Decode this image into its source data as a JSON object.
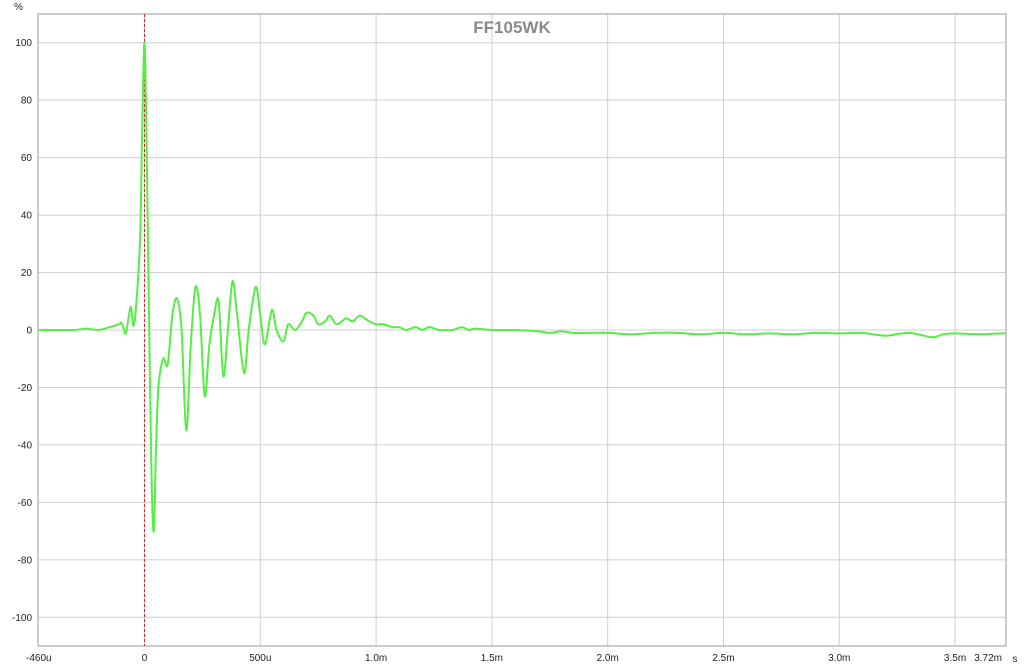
{
  "chart_data": {
    "type": "line",
    "title": "FF105WK",
    "y_unit": "%",
    "x_unit": "s",
    "xlim": [
      -0.00046,
      0.00372
    ],
    "ylim": [
      -110,
      110
    ],
    "grid": true,
    "x_ticks": [
      {
        "value": -0.00046,
        "label": "-460u"
      },
      {
        "value": 0,
        "label": "0"
      },
      {
        "value": 0.0005,
        "label": "500u"
      },
      {
        "value": 0.001,
        "label": "1.0m"
      },
      {
        "value": 0.0015,
        "label": "1.5m"
      },
      {
        "value": 0.002,
        "label": "2.0m"
      },
      {
        "value": 0.0025,
        "label": "2.5m"
      },
      {
        "value": 0.003,
        "label": "3.0m"
      },
      {
        "value": 0.0035,
        "label": "3.5m"
      },
      {
        "value": 0.00372,
        "label": "3.72m"
      }
    ],
    "y_ticks": [
      100,
      80,
      60,
      40,
      20,
      0,
      -20,
      -40,
      -60,
      -80,
      -100
    ],
    "marker_x": 0,
    "series": [
      {
        "color": "#55ee44",
        "x": [
          -0.00046,
          -0.0004,
          -0.00035,
          -0.0003,
          -0.00025,
          -0.0002,
          -0.00015,
          -0.00011,
          -0.0001,
          -9e-05,
          -8e-05,
          -6e-05,
          -5e-05,
          -4e-05,
          -2e-05,
          -1e-05,
          0,
          1e-05,
          2e-05,
          3e-05,
          4e-05,
          5e-05,
          6e-05,
          8e-05,
          0.0001,
          0.00012,
          0.00014,
          0.00016,
          0.00018,
          0.0002,
          0.00022,
          0.00024,
          0.00026,
          0.00028,
          0.0003,
          0.00032,
          0.00034,
          0.00036,
          0.00038,
          0.0004,
          0.00043,
          0.00045,
          0.00048,
          0.0005,
          0.00052,
          0.00055,
          0.00057,
          0.0006,
          0.00062,
          0.00065,
          0.00068,
          0.0007,
          0.00073,
          0.00075,
          0.00078,
          0.0008,
          0.00083,
          0.00087,
          0.0009,
          0.00093,
          0.00097,
          0.001,
          0.00103,
          0.00107,
          0.0011,
          0.00113,
          0.00117,
          0.0012,
          0.00123,
          0.00127,
          0.0013,
          0.00133,
          0.00137,
          0.0014,
          0.00143,
          0.0015,
          0.0016,
          0.0017,
          0.00175,
          0.0018,
          0.00185,
          0.0019,
          0.002,
          0.0021,
          0.0022,
          0.0023,
          0.0024,
          0.0025,
          0.0026,
          0.0027,
          0.0028,
          0.0029,
          0.003,
          0.0031,
          0.0032,
          0.0033,
          0.0034,
          0.00345,
          0.0035,
          0.0036,
          0.0037,
          0.00372
        ],
        "y": [
          0,
          0,
          0,
          0,
          0.5,
          0,
          1,
          2,
          2.5,
          0.5,
          -1,
          8,
          2,
          5,
          30,
          70,
          100,
          60,
          0,
          -50,
          -70,
          -40,
          -20,
          -10,
          -12,
          5,
          11,
          0,
          -35,
          -5,
          15,
          5,
          -23,
          -5,
          5,
          10,
          -16,
          0,
          17,
          5,
          -15,
          0,
          15,
          5,
          -5,
          7,
          0,
          -4,
          2,
          0,
          3,
          6,
          5,
          2,
          3,
          5,
          2,
          4,
          3,
          5,
          3,
          2,
          2,
          1,
          1,
          0,
          1,
          0,
          1,
          0,
          0,
          0,
          1,
          0,
          0.5,
          0,
          0,
          -0.5,
          -1,
          -0.5,
          -1,
          -1,
          -1,
          -1.5,
          -1,
          -1,
          -1.5,
          -1,
          -1.5,
          -1.2,
          -1.5,
          -1,
          -1.2,
          -1,
          -2,
          -1,
          -2.5,
          -1.5,
          -1.2,
          -1.5,
          -1.2,
          -1.2
        ]
      }
    ]
  }
}
